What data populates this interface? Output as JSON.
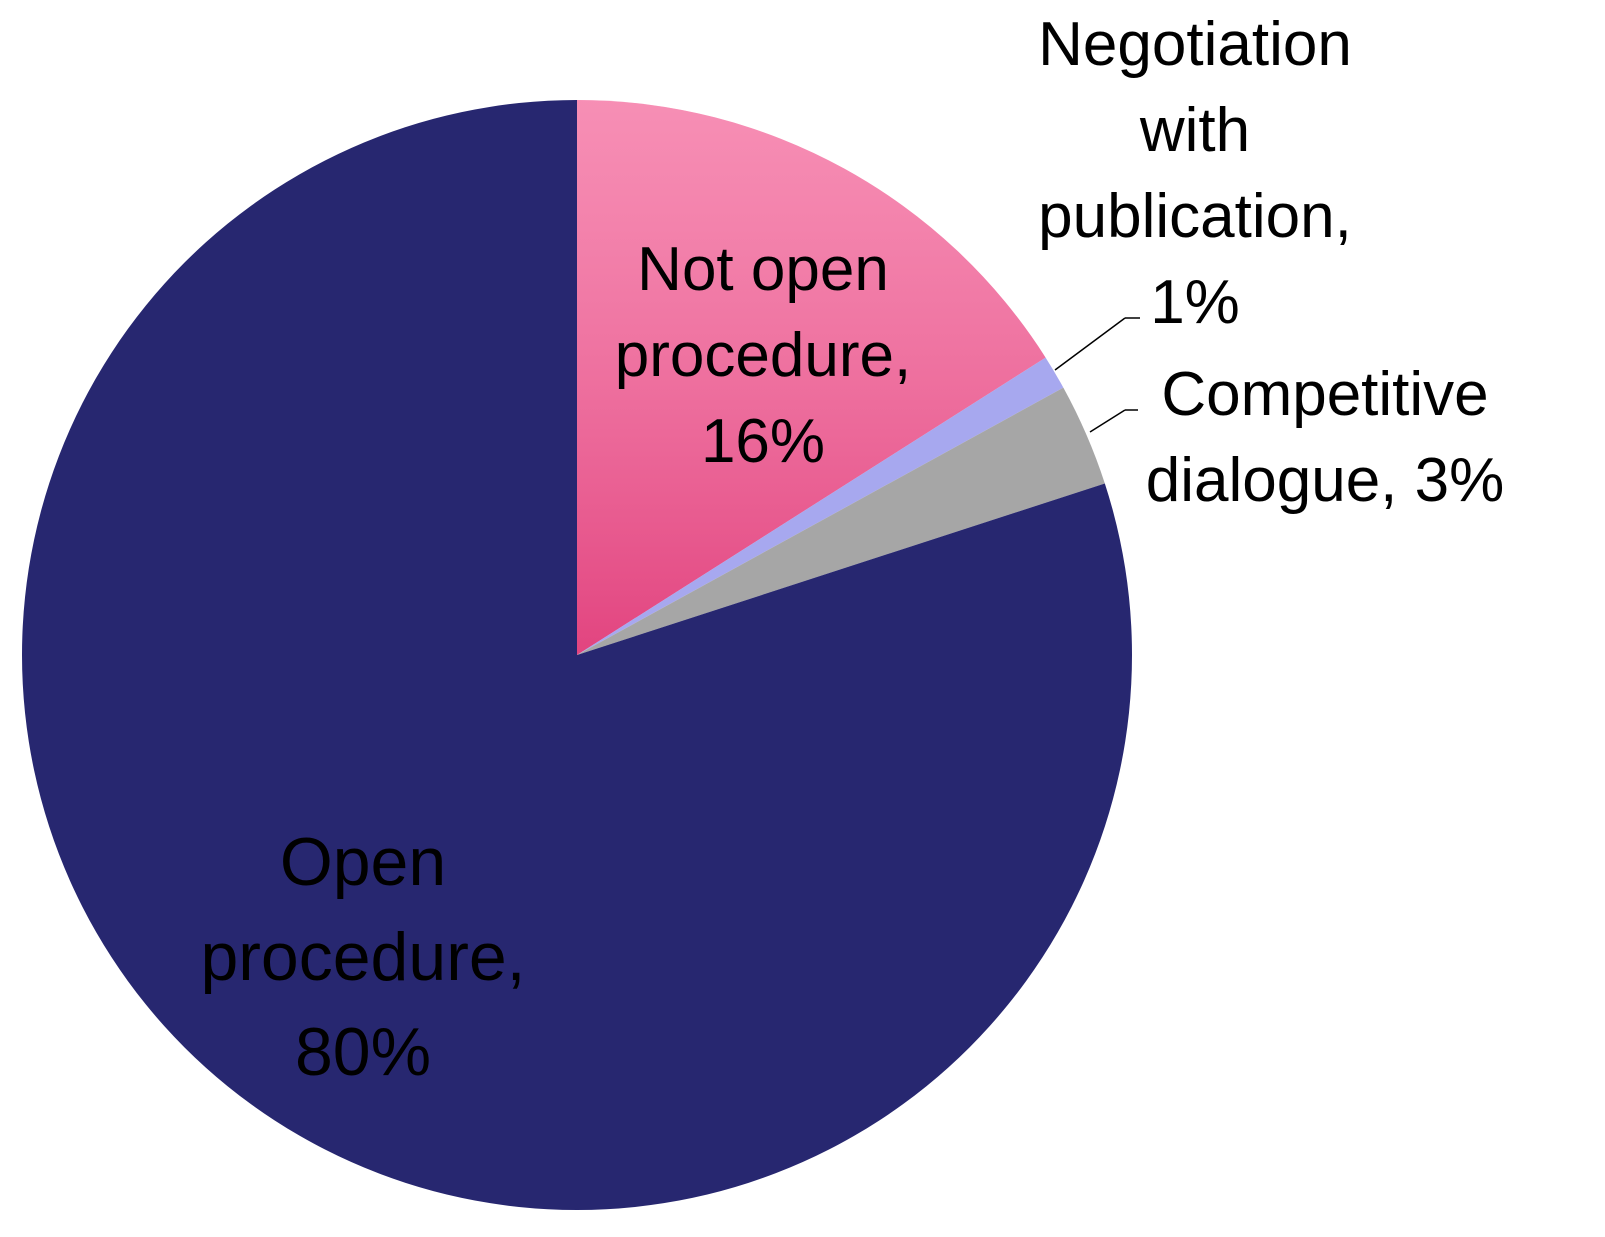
{
  "chart_data": {
    "type": "pie",
    "categories": [
      "Not open procedure,",
      "Negotiation with publication,",
      "Competitive dialogue,",
      "Open procedure,"
    ],
    "values": [
      16,
      1,
      3,
      80
    ],
    "value_labels": [
      "16%",
      "1%",
      "3%",
      "80%"
    ],
    "colors": [
      "#f4699c",
      "#a7a8ef",
      "#a6a6a6",
      "#272770"
    ]
  }
}
